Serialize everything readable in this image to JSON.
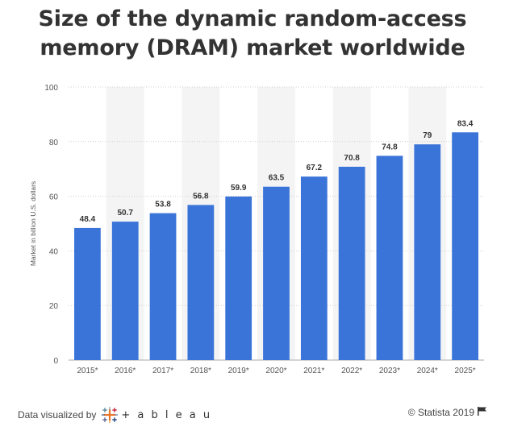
{
  "title_line1": "Size of the dynamic random-access",
  "title_line2": "memory (DRAM) market worldwide",
  "footer": {
    "visualized_by": "Data visualized by",
    "tableau": "+ a b l e a u",
    "copyright": "© Statista 2019"
  },
  "icons": {
    "tableau_logo": "tableau-cross-logo-icon",
    "flag": "flag-icon"
  },
  "colors": {
    "bar": "#3a74d9",
    "band": "#f4f4f4",
    "grid": "#cfcfcf",
    "text": "#333333"
  },
  "chart_data": {
    "type": "bar",
    "categories": [
      "2015*",
      "2016*",
      "2017*",
      "2018*",
      "2019*",
      "2020*",
      "2021*",
      "2022*",
      "2023*",
      "2024*",
      "2025*"
    ],
    "values": [
      48.4,
      50.7,
      53.8,
      56.8,
      59.9,
      63.5,
      67.2,
      70.8,
      74.8,
      79,
      83.4
    ],
    "value_labels": [
      "48.4",
      "50.7",
      "53.8",
      "56.8",
      "59.9",
      "63.5",
      "67.2",
      "70.8",
      "74.8",
      "79",
      "83.4"
    ],
    "ylabel": "Market in billion U.S. dollars",
    "xlabel": "",
    "ylim": [
      0,
      100
    ],
    "yticks": [
      0,
      20,
      40,
      60,
      80,
      100
    ],
    "ytick_labels": [
      "0",
      "20",
      "40",
      "60",
      "80",
      "100"
    ],
    "grid": true,
    "alternating_bands": true
  }
}
